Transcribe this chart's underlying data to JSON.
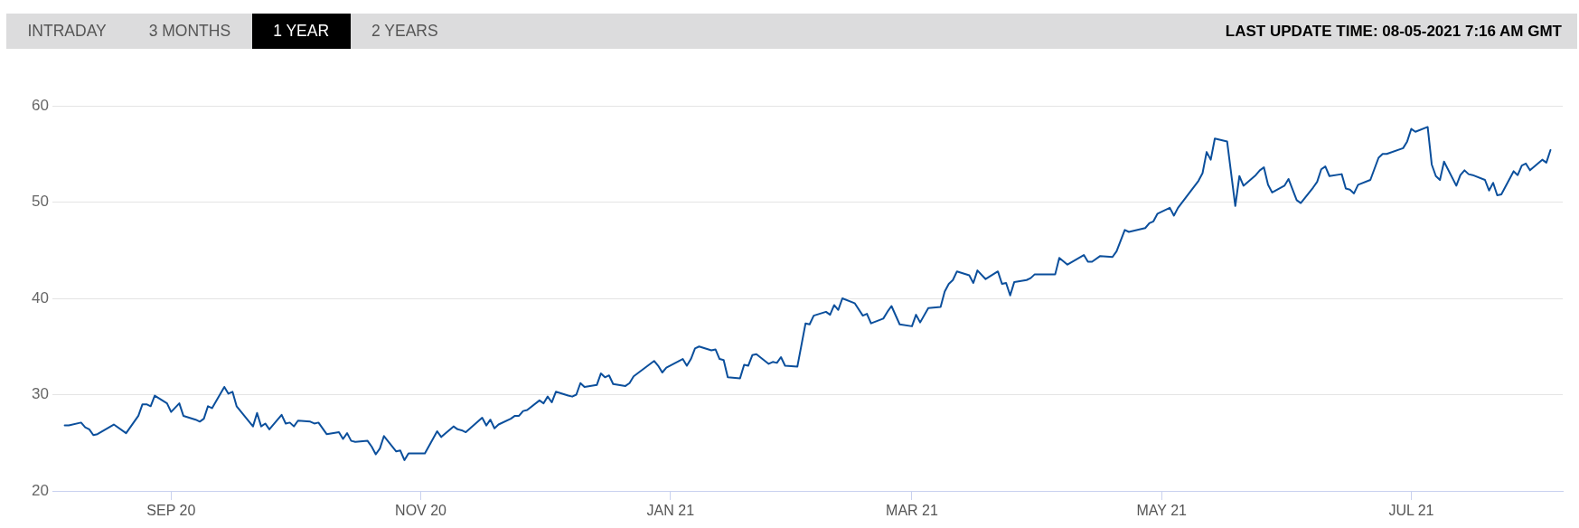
{
  "chart_data": {
    "type": "line",
    "subtitle": "LAST UPDATE TIME: 08-05-2021 7:16 AM GMT",
    "annotations": [
      "INTRADAY",
      "3 MONTHS",
      "1 YEAR",
      "2 YEARS"
    ],
    "x": [
      "2020-08-06",
      "2020-08-07",
      "2020-08-10",
      "2020-08-11",
      "2020-08-12",
      "2020-08-13",
      "2020-08-14",
      "2020-08-18",
      "2020-08-21",
      "2020-08-24",
      "2020-08-25",
      "2020-08-26",
      "2020-08-27",
      "2020-08-28",
      "2020-08-31",
      "2020-09-01",
      "2020-09-03",
      "2020-09-04",
      "2020-09-07",
      "2020-09-08",
      "2020-09-09",
      "2020-09-10",
      "2020-09-11",
      "2020-09-14",
      "2020-09-15",
      "2020-09-16",
      "2020-09-17",
      "2020-09-21",
      "2020-09-22",
      "2020-09-23",
      "2020-09-24",
      "2020-09-25",
      "2020-09-28",
      "2020-09-29",
      "2020-09-30",
      "2020-10-01",
      "2020-10-02",
      "2020-10-05",
      "2020-10-06",
      "2020-10-07",
      "2020-10-09",
      "2020-10-12",
      "2020-10-13",
      "2020-10-14",
      "2020-10-15",
      "2020-10-16",
      "2020-10-19",
      "2020-10-20",
      "2020-10-21",
      "2020-10-22",
      "2020-10-23",
      "2020-10-26",
      "2020-10-27",
      "2020-10-28",
      "2020-10-29",
      "2020-10-30",
      "2020-11-02",
      "2020-11-05",
      "2020-11-06",
      "2020-11-09",
      "2020-11-10",
      "2020-11-11",
      "2020-11-12",
      "2020-11-16",
      "2020-11-17",
      "2020-11-18",
      "2020-11-19",
      "2020-11-20",
      "2020-11-23",
      "2020-11-24",
      "2020-11-25",
      "2020-11-26",
      "2020-11-27",
      "2020-11-30",
      "2020-12-01",
      "2020-12-02",
      "2020-12-03",
      "2020-12-04",
      "2020-12-07",
      "2020-12-08",
      "2020-12-09",
      "2020-12-10",
      "2020-12-11",
      "2020-12-14",
      "2020-12-15",
      "2020-12-16",
      "2020-12-17",
      "2020-12-18",
      "2020-12-21",
      "2020-12-22",
      "2020-12-23",
      "2020-12-28",
      "2020-12-29",
      "2020-12-30",
      "2020-12-31",
      "2021-01-04",
      "2021-01-05",
      "2021-01-06",
      "2021-01-07",
      "2021-01-08",
      "2021-01-11",
      "2021-01-12",
      "2021-01-13",
      "2021-01-14",
      "2021-01-15",
      "2021-01-18",
      "2021-01-19",
      "2021-01-20",
      "2021-01-21",
      "2021-01-22",
      "2021-01-25",
      "2021-01-26",
      "2021-01-27",
      "2021-01-28",
      "2021-01-29",
      "2021-02-01",
      "2021-02-03",
      "2021-02-04",
      "2021-02-05",
      "2021-02-08",
      "2021-02-09",
      "2021-02-10",
      "2021-02-11",
      "2021-02-12",
      "2021-02-15",
      "2021-02-17",
      "2021-02-18",
      "2021-02-19",
      "2021-02-22",
      "2021-02-23",
      "2021-02-24",
      "2021-02-26",
      "2021-03-01",
      "2021-03-02",
      "2021-03-03",
      "2021-03-05",
      "2021-03-08",
      "2021-03-09",
      "2021-03-10",
      "2021-03-11",
      "2021-03-12",
      "2021-03-15",
      "2021-03-16",
      "2021-03-17",
      "2021-03-19",
      "2021-03-22",
      "2021-03-23",
      "2021-03-24",
      "2021-03-25",
      "2021-03-26",
      "2021-03-29",
      "2021-03-30",
      "2021-03-31",
      "2021-04-05",
      "2021-04-06",
      "2021-04-08",
      "2021-04-12",
      "2021-04-13",
      "2021-04-14",
      "2021-04-16",
      "2021-04-19",
      "2021-04-20",
      "2021-04-22",
      "2021-04-23",
      "2021-04-27",
      "2021-04-28",
      "2021-04-29",
      "2021-04-30",
      "2021-05-03",
      "2021-05-04",
      "2021-05-05",
      "2021-05-10",
      "2021-05-11",
      "2021-05-12",
      "2021-05-13",
      "2021-05-14",
      "2021-05-17",
      "2021-05-19",
      "2021-05-20",
      "2021-05-21",
      "2021-05-24",
      "2021-05-25",
      "2021-05-26",
      "2021-05-27",
      "2021-05-28",
      "2021-05-31",
      "2021-06-01",
      "2021-06-03",
      "2021-06-04",
      "2021-06-07",
      "2021-06-08",
      "2021-06-09",
      "2021-06-10",
      "2021-06-11",
      "2021-06-14",
      "2021-06-15",
      "2021-06-16",
      "2021-06-17",
      "2021-06-18",
      "2021-06-21",
      "2021-06-23",
      "2021-06-24",
      "2021-06-25",
      "2021-06-29",
      "2021-06-30",
      "2021-07-01",
      "2021-07-02",
      "2021-07-05",
      "2021-07-06",
      "2021-07-07",
      "2021-07-08",
      "2021-07-09",
      "2021-07-12",
      "2021-07-13",
      "2021-07-14",
      "2021-07-15",
      "2021-07-16",
      "2021-07-19",
      "2021-07-20",
      "2021-07-21",
      "2021-07-22",
      "2021-07-23",
      "2021-07-26",
      "2021-07-27",
      "2021-07-28",
      "2021-07-29",
      "2021-07-30",
      "2021-08-02",
      "2021-08-03",
      "2021-08-04"
    ],
    "values": [
      26.8,
      26.8,
      27.1,
      26.6,
      26.4,
      25.8,
      25.9,
      26.9,
      26.0,
      27.8,
      29.0,
      29.0,
      28.8,
      29.9,
      29.1,
      28.2,
      29.1,
      27.8,
      27.4,
      27.2,
      27.5,
      28.8,
      28.6,
      30.8,
      30.1,
      30.3,
      28.8,
      26.7,
      28.1,
      26.7,
      27.0,
      26.4,
      27.9,
      27.0,
      27.1,
      26.7,
      27.3,
      27.2,
      27.0,
      27.1,
      25.9,
      26.1,
      25.4,
      26.0,
      25.2,
      25.1,
      25.2,
      24.6,
      23.8,
      24.4,
      25.7,
      24.1,
      24.2,
      23.2,
      23.9,
      23.9,
      23.9,
      26.2,
      25.6,
      26.7,
      26.4,
      26.3,
      26.1,
      27.6,
      26.8,
      27.4,
      26.5,
      26.9,
      27.5,
      27.8,
      27.8,
      28.3,
      28.4,
      29.4,
      29.1,
      29.8,
      29.2,
      30.3,
      29.9,
      29.8,
      30.0,
      31.2,
      30.8,
      31.0,
      32.2,
      31.8,
      32.0,
      31.1,
      30.9,
      31.2,
      31.9,
      33.5,
      33.0,
      32.3,
      32.8,
      33.7,
      33.0,
      33.7,
      34.8,
      35.0,
      34.6,
      34.7,
      33.7,
      33.6,
      31.8,
      31.7,
      33.1,
      33.0,
      34.1,
      34.2,
      33.2,
      33.4,
      33.3,
      33.9,
      33.0,
      32.9,
      37.4,
      37.3,
      38.2,
      38.6,
      38.3,
      39.3,
      38.8,
      40.0,
      39.5,
      38.2,
      38.4,
      37.4,
      37.9,
      38.6,
      39.2,
      37.3,
      37.1,
      38.3,
      37.5,
      39.0,
      39.1,
      40.7,
      41.5,
      41.9,
      42.8,
      42.4,
      41.6,
      42.9,
      42.0,
      42.8,
      41.5,
      41.6,
      40.3,
      41.7,
      41.9,
      42.1,
      42.5,
      42.5,
      44.2,
      43.5,
      44.5,
      43.8,
      43.8,
      44.4,
      44.3,
      44.9,
      47.1,
      46.9,
      47.3,
      47.8,
      48.0,
      48.8,
      49.4,
      48.6,
      49.4,
      52.2,
      53.0,
      55.2,
      54.4,
      56.6,
      56.3,
      49.6,
      52.7,
      51.7,
      52.8,
      53.3,
      53.6,
      51.8,
      51.0,
      51.7,
      52.4,
      50.2,
      49.9,
      51.5,
      52.1,
      53.4,
      53.7,
      52.7,
      52.9,
      51.4,
      51.3,
      50.9,
      51.8,
      52.3,
      54.6,
      55.0,
      55.0,
      55.6,
      56.3,
      57.6,
      57.3,
      57.8,
      53.9,
      52.7,
      52.3,
      54.2,
      51.7,
      52.8,
      53.3,
      52.9,
      52.8,
      52.3,
      51.2,
      52.0,
      50.7,
      50.8,
      53.2,
      52.8,
      53.8,
      54.0,
      53.3,
      54.4,
      54.1,
      55.4
    ],
    "color": "#0b4f9c",
    "xlim": [
      "2020-08-03",
      "2021-08-07"
    ],
    "xticks": [
      {
        "value": "2020-09-01",
        "label": "SEP 20"
      },
      {
        "value": "2020-11-01",
        "label": "NOV 20"
      },
      {
        "value": "2021-01-01",
        "label": "JAN 21"
      },
      {
        "value": "2021-03-01",
        "label": "MAR 21"
      },
      {
        "value": "2021-05-01",
        "label": "MAY 21"
      },
      {
        "value": "2021-07-01",
        "label": "JUL 21"
      }
    ],
    "ylim": [
      20,
      60
    ],
    "yticks": [
      20,
      30,
      40,
      50,
      60
    ],
    "grid": "y",
    "marker": "none",
    "line_style": "solid"
  }
}
